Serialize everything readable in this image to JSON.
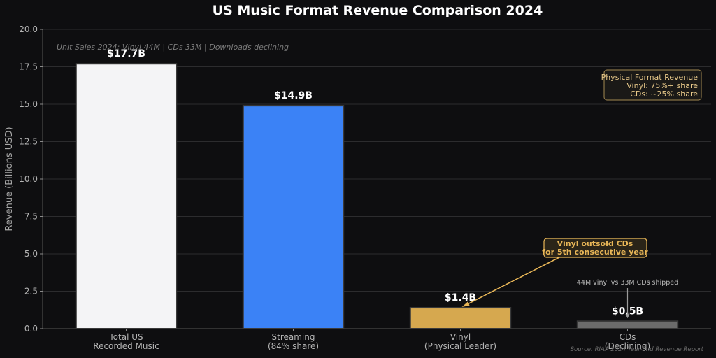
{
  "chart_data": {
    "type": "bar",
    "title": "US Music Format Revenue Comparison 2024",
    "ylabel": "Revenue (Billions USD)",
    "xlabel": "",
    "ylim": [
      0,
      20
    ],
    "yticks": [
      "0.0",
      "2.5",
      "5.0",
      "7.5",
      "10.0",
      "12.5",
      "15.0",
      "17.5",
      "20.0"
    ],
    "grid": true,
    "categories": [
      [
        "Total US",
        "Recorded Music"
      ],
      [
        "Streaming",
        "(84% share)"
      ],
      [
        "Vinyl",
        "(Physical Leader)"
      ],
      [
        "CDs",
        "(Declining)"
      ]
    ],
    "values": [
      17.7,
      14.9,
      1.4,
      0.5
    ],
    "value_labels": [
      "$17.7B",
      "$14.9B",
      "$1.4B",
      "$0.5B"
    ],
    "bar_colors": [
      "#f4f4f6",
      "#3b82f6",
      "#d6a84f",
      "#6b6b6b"
    ],
    "subtitle_note": "Unit Sales 2024: Vinyl 44M | CDs 33M | Downloads declining",
    "legend_box": {
      "lines": [
        "Physical Format Revenue",
        "Vinyl: 75%+ share",
        "CDs: ~25% share"
      ],
      "placement": "top-right"
    },
    "callout": {
      "lines": [
        "Vinyl outsold CDs",
        "for 5th consecutive year"
      ],
      "target_category": 2
    },
    "annotation": {
      "text": "44M vinyl vs 33M CDs shipped",
      "target_category": 3
    },
    "source": "Source: RIAA 2024 Year-End Revenue Report",
    "colors": {
      "background": "#0e0e10",
      "grid": "#2c2c2e",
      "accent": "#e8b657"
    }
  }
}
